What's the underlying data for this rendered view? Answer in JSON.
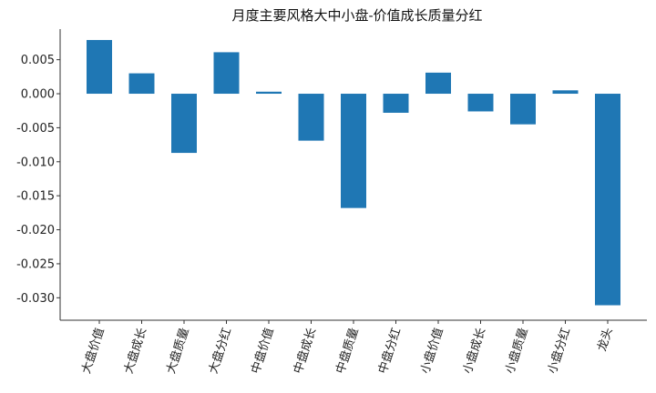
{
  "chart_data": {
    "type": "bar",
    "title": "月度主要风格大中小盘-价值成长质量分红",
    "xlabel": "",
    "ylabel": "",
    "categories": [
      "大盘价值",
      "大盘成长",
      "大盘质量",
      "大盘分红",
      "中盘价值",
      "中盘成长",
      "中盘质量",
      "中盘分红",
      "小盘价值",
      "小盘成长",
      "小盘质量",
      "小盘分红",
      "龙头"
    ],
    "values": [
      0.0079,
      0.003,
      -0.0087,
      0.0061,
      0.0003,
      -0.0069,
      -0.0168,
      -0.0028,
      0.0031,
      -0.0026,
      -0.0045,
      0.0005,
      -0.0311
    ],
    "ylim": [
      -0.0333,
      0.0095
    ],
    "yticks": [
      0.005,
      0.0,
      -0.005,
      -0.01,
      -0.015,
      -0.02,
      -0.025,
      -0.03
    ],
    "ytick_labels": [
      "0.005",
      "0.000",
      "-0.005",
      "-0.010",
      "-0.015",
      "-0.020",
      "-0.025",
      "-0.030"
    ],
    "bar_color": "#1f77b4",
    "grid": false,
    "legend": "none"
  }
}
